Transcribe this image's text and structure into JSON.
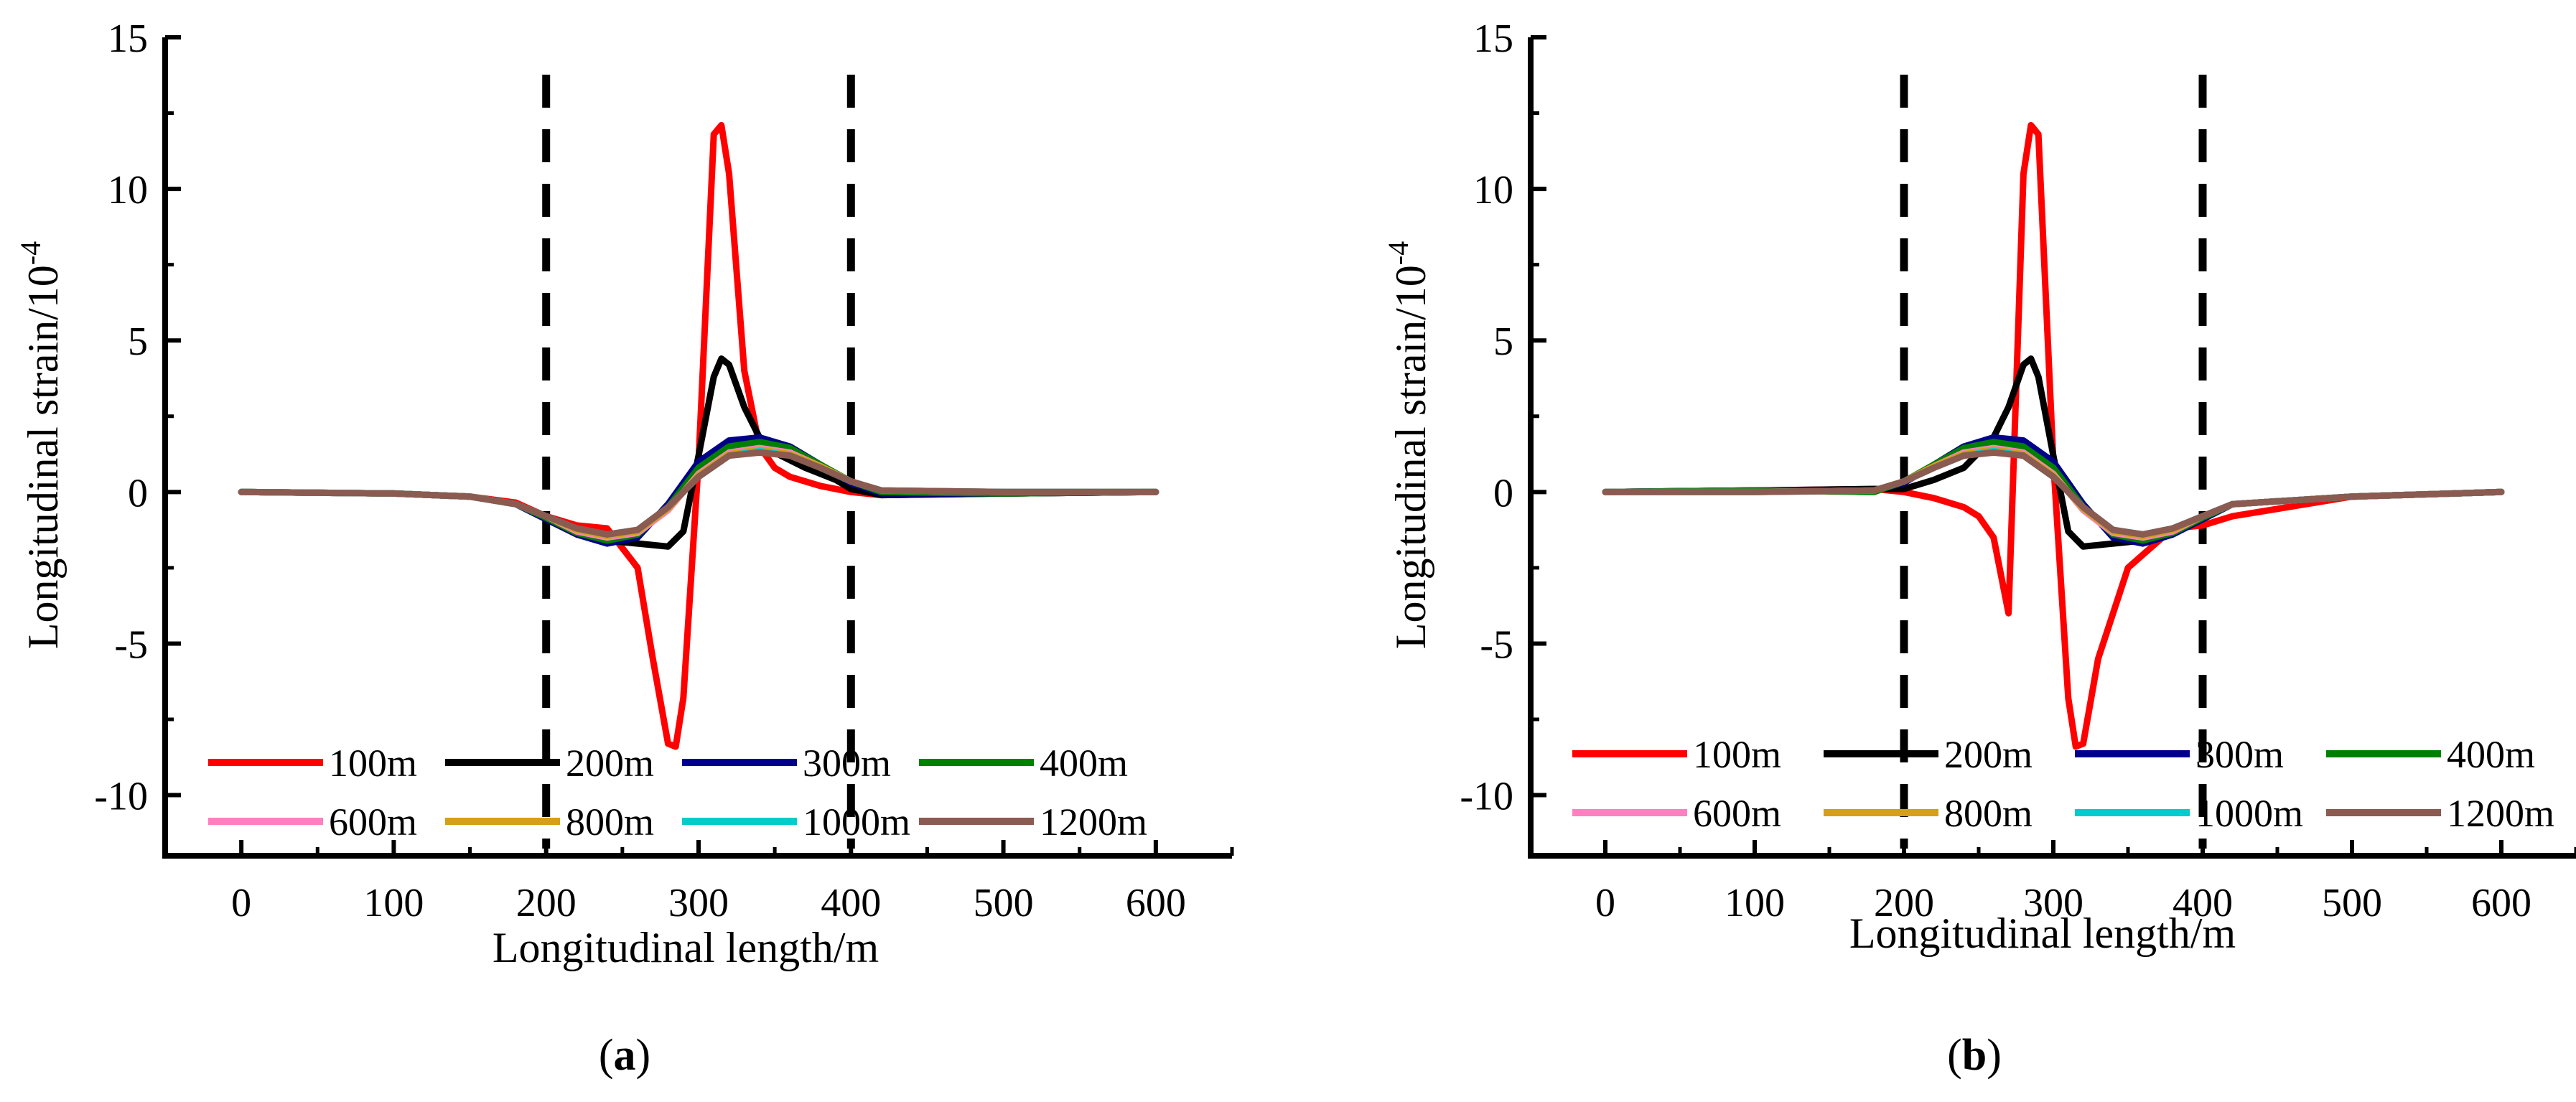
{
  "chart_data": [
    {
      "type": "line",
      "panel_caption": "a",
      "xlabel": "Longitudinal length/m",
      "ylabel": "Longitudinal strain/10",
      "ylabel_exponent": "-4",
      "xlim": [
        -50,
        650
      ],
      "ylim": [
        -12,
        15
      ],
      "x_ticks": [
        0,
        100,
        200,
        300,
        400,
        500,
        600
      ],
      "y_ticks": [
        -10,
        -5,
        0,
        5,
        10,
        15
      ],
      "x_tick_labels": [
        "0",
        "100",
        "200",
        "300",
        "400",
        "500",
        "600"
      ],
      "y_tick_labels": [
        "-10",
        "-5",
        "0",
        "5",
        "10",
        "15"
      ],
      "reference_lines_x": [
        200,
        400
      ],
      "legend": {
        "placement": "bottom-left",
        "columns": 4
      },
      "series": [
        {
          "name": "100m",
          "color": "#ff0000",
          "x": [
            0,
            100,
            150,
            180,
            200,
            220,
            240,
            260,
            270,
            280,
            285,
            290,
            300,
            310,
            315,
            320,
            330,
            340,
            350,
            360,
            380,
            400,
            420,
            500,
            600
          ],
          "y": [
            0,
            -0.05,
            -0.15,
            -0.35,
            -0.8,
            -1.1,
            -1.2,
            -2.5,
            -5.5,
            -8.3,
            -8.4,
            -6.8,
            1.0,
            11.8,
            12.1,
            10.5,
            4.0,
            1.5,
            0.8,
            0.5,
            0.2,
            0.0,
            -0.1,
            -0.05,
            0
          ]
        },
        {
          "name": "200m",
          "color": "#000000",
          "x": [
            0,
            100,
            150,
            180,
            200,
            220,
            240,
            260,
            280,
            290,
            300,
            310,
            315,
            320,
            330,
            340,
            350,
            370,
            390,
            400,
            420,
            500,
            600
          ],
          "y": [
            0,
            -0.05,
            -0.15,
            -0.4,
            -0.8,
            -1.2,
            -1.6,
            -1.7,
            -1.8,
            -1.3,
            1.2,
            3.8,
            4.4,
            4.2,
            2.8,
            1.8,
            1.3,
            0.8,
            0.4,
            0.1,
            -0.1,
            -0.05,
            0
          ]
        },
        {
          "name": "300m",
          "color": "#00008b",
          "x": [
            0,
            100,
            150,
            180,
            200,
            220,
            240,
            260,
            280,
            300,
            320,
            340,
            360,
            380,
            400,
            420,
            500,
            600
          ],
          "y": [
            0,
            -0.05,
            -0.15,
            -0.4,
            -0.9,
            -1.4,
            -1.7,
            -1.5,
            -0.4,
            1.0,
            1.7,
            1.8,
            1.5,
            0.9,
            0.3,
            -0.05,
            -0.05,
            0
          ]
        },
        {
          "name": "400m",
          "color": "#008000",
          "x": [
            0,
            100,
            150,
            180,
            200,
            220,
            240,
            260,
            280,
            300,
            320,
            340,
            360,
            380,
            400,
            420,
            500,
            600
          ],
          "y": [
            0,
            -0.05,
            -0.15,
            -0.4,
            -0.85,
            -1.35,
            -1.6,
            -1.4,
            -0.5,
            0.8,
            1.5,
            1.65,
            1.45,
            0.9,
            0.35,
            0.0,
            -0.05,
            0
          ]
        },
        {
          "name": "600m",
          "color": "#ff80c0",
          "x": [
            0,
            100,
            150,
            180,
            200,
            220,
            240,
            260,
            280,
            300,
            320,
            340,
            360,
            380,
            400,
            420,
            500,
            600
          ],
          "y": [
            0,
            -0.05,
            -0.15,
            -0.4,
            -0.8,
            -1.3,
            -1.5,
            -1.35,
            -0.6,
            0.6,
            1.3,
            1.45,
            1.3,
            0.85,
            0.35,
            0.05,
            0.0,
            0
          ]
        },
        {
          "name": "800m",
          "color": "#d4a017",
          "x": [
            0,
            100,
            150,
            180,
            200,
            220,
            240,
            260,
            280,
            300,
            320,
            340,
            360,
            380,
            400,
            420,
            500,
            600
          ],
          "y": [
            0,
            -0.05,
            -0.15,
            -0.4,
            -0.8,
            -1.25,
            -1.45,
            -1.3,
            -0.55,
            0.55,
            1.25,
            1.4,
            1.25,
            0.85,
            0.35,
            0.05,
            0.0,
            0
          ]
        },
        {
          "name": "1000m",
          "color": "#00cccc",
          "x": [
            0,
            100,
            150,
            180,
            200,
            220,
            240,
            260,
            280,
            300,
            320,
            340,
            360,
            380,
            400,
            420,
            500,
            600
          ],
          "y": [
            0,
            -0.05,
            -0.15,
            -0.4,
            -0.8,
            -1.2,
            -1.4,
            -1.25,
            -0.5,
            0.5,
            1.2,
            1.35,
            1.2,
            0.8,
            0.35,
            0.05,
            0.0,
            0
          ]
        },
        {
          "name": "1200m",
          "color": "#8b5a50",
          "x": [
            0,
            100,
            150,
            180,
            200,
            220,
            240,
            260,
            280,
            300,
            320,
            340,
            360,
            380,
            400,
            420,
            500,
            600
          ],
          "y": [
            0,
            -0.05,
            -0.15,
            -0.4,
            -0.8,
            -1.2,
            -1.4,
            -1.25,
            -0.5,
            0.5,
            1.2,
            1.3,
            1.2,
            0.8,
            0.35,
            0.05,
            0.0,
            0
          ]
        }
      ]
    },
    {
      "type": "line",
      "panel_caption": "b",
      "xlabel": "Longitudinal length/m",
      "ylabel": "Longitudinal strain/10",
      "ylabel_exponent": "-4",
      "xlim": [
        -50,
        650
      ],
      "ylim": [
        -12,
        15
      ],
      "x_ticks": [
        0,
        100,
        200,
        300,
        400,
        500,
        600
      ],
      "y_ticks": [
        -10,
        -5,
        0,
        5,
        10,
        15
      ],
      "x_tick_labels": [
        "0",
        "100",
        "200",
        "300",
        "400",
        "500",
        "600"
      ],
      "y_tick_labels": [
        "-10",
        "-5",
        "0",
        "5",
        "10",
        "15"
      ],
      "reference_lines_x": [
        200,
        400
      ],
      "legend": {
        "placement": "bottom-left",
        "columns": 4
      },
      "series": [
        {
          "name": "100m",
          "color": "#ff0000",
          "x": [
            0,
            100,
            180,
            200,
            220,
            240,
            250,
            260,
            270,
            280,
            285,
            290,
            300,
            310,
            315,
            320,
            330,
            350,
            380,
            400,
            420,
            500,
            600
          ],
          "y": [
            0,
            0.05,
            0.1,
            0.0,
            -0.2,
            -0.5,
            -0.8,
            -1.5,
            -4.0,
            10.5,
            12.1,
            11.8,
            1.0,
            -6.8,
            -8.4,
            -8.3,
            -5.5,
            -2.5,
            -1.2,
            -1.1,
            -0.8,
            -0.15,
            0
          ]
        },
        {
          "name": "200m",
          "color": "#000000",
          "x": [
            0,
            100,
            180,
            200,
            220,
            240,
            250,
            260,
            270,
            280,
            285,
            290,
            300,
            310,
            320,
            340,
            360,
            380,
            400,
            420,
            500,
            600
          ],
          "y": [
            0,
            0.05,
            0.1,
            0.1,
            0.4,
            0.8,
            1.3,
            1.8,
            2.8,
            4.2,
            4.4,
            3.8,
            1.2,
            -1.3,
            -1.8,
            -1.7,
            -1.6,
            -1.2,
            -0.8,
            -0.4,
            -0.15,
            0
          ]
        },
        {
          "name": "300m",
          "color": "#00008b",
          "x": [
            0,
            100,
            180,
            200,
            220,
            240,
            260,
            280,
            300,
            320,
            340,
            360,
            380,
            400,
            420,
            500,
            600
          ],
          "y": [
            0,
            0.05,
            0.05,
            0.3,
            0.9,
            1.5,
            1.8,
            1.7,
            1.0,
            -0.4,
            -1.5,
            -1.7,
            -1.4,
            -0.9,
            -0.4,
            -0.15,
            0
          ]
        },
        {
          "name": "400m",
          "color": "#008000",
          "x": [
            0,
            100,
            180,
            200,
            220,
            240,
            260,
            280,
            300,
            320,
            340,
            360,
            380,
            400,
            420,
            500,
            600
          ],
          "y": [
            0,
            0.05,
            0.0,
            0.35,
            0.9,
            1.45,
            1.65,
            1.5,
            0.8,
            -0.5,
            -1.4,
            -1.6,
            -1.35,
            -0.85,
            -0.4,
            -0.15,
            0
          ]
        },
        {
          "name": "600m",
          "color": "#ff80c0",
          "x": [
            0,
            100,
            180,
            200,
            220,
            240,
            260,
            280,
            300,
            320,
            340,
            360,
            380,
            400,
            420,
            500,
            600
          ],
          "y": [
            0,
            0.0,
            0.05,
            0.35,
            0.85,
            1.3,
            1.45,
            1.3,
            0.6,
            -0.6,
            -1.35,
            -1.5,
            -1.3,
            -0.8,
            -0.4,
            -0.15,
            0
          ]
        },
        {
          "name": "800m",
          "color": "#d4a017",
          "x": [
            0,
            100,
            180,
            200,
            220,
            240,
            260,
            280,
            300,
            320,
            340,
            360,
            380,
            400,
            420,
            500,
            600
          ],
          "y": [
            0,
            0.0,
            0.05,
            0.35,
            0.85,
            1.25,
            1.4,
            1.25,
            0.55,
            -0.55,
            -1.3,
            -1.45,
            -1.25,
            -0.8,
            -0.4,
            -0.15,
            0
          ]
        },
        {
          "name": "1000m",
          "color": "#00cccc",
          "x": [
            0,
            100,
            180,
            200,
            220,
            240,
            260,
            280,
            300,
            320,
            340,
            360,
            380,
            400,
            420,
            500,
            600
          ],
          "y": [
            0,
            0.0,
            0.05,
            0.35,
            0.8,
            1.2,
            1.35,
            1.2,
            0.5,
            -0.5,
            -1.25,
            -1.4,
            -1.2,
            -0.8,
            -0.4,
            -0.15,
            0
          ]
        },
        {
          "name": "1200m",
          "color": "#8b5a50",
          "x": [
            0,
            100,
            180,
            200,
            220,
            240,
            260,
            280,
            300,
            320,
            340,
            360,
            380,
            400,
            420,
            500,
            600
          ],
          "y": [
            0,
            0.0,
            0.05,
            0.35,
            0.8,
            1.2,
            1.3,
            1.2,
            0.5,
            -0.5,
            -1.25,
            -1.4,
            -1.2,
            -0.8,
            -0.4,
            -0.15,
            0
          ]
        }
      ]
    }
  ]
}
